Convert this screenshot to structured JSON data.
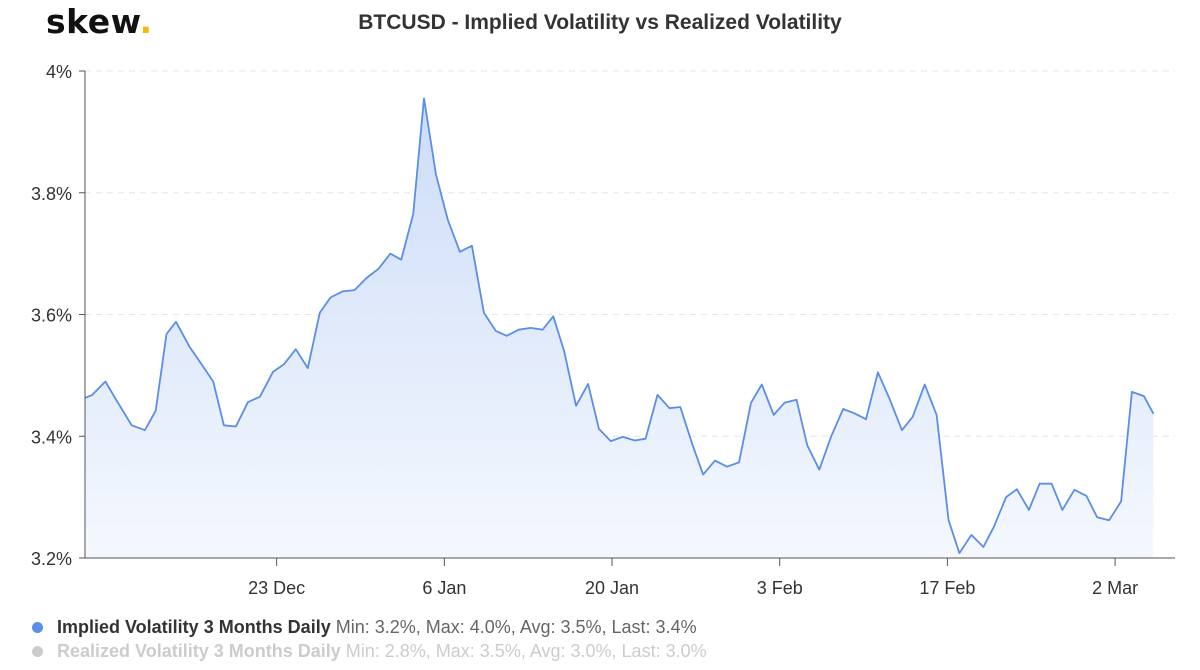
{
  "logo": {
    "text": "skew",
    "dot": "."
  },
  "colors": {
    "primary_line": "#5b8ee6",
    "area_fill_top": "#c9daf7",
    "area_fill_bottom": "#f3f7fe",
    "inactive": "#cccccc",
    "grid": "#e6e6e6",
    "axis": "#555555"
  },
  "legend": [
    {
      "name": "Implied Volatility 3 Months Daily",
      "stats": "Min: 3.2%, Max: 4.0%, Avg: 3.5%, Last: 3.4%",
      "active": true
    },
    {
      "name": "Realized Volatility 3 Months Daily",
      "stats": "Min: 2.8%, Max: 3.5%, Avg: 3.0%, Last: 3.0%",
      "active": false
    }
  ],
  "chart_data": {
    "type": "area",
    "title": "BTCUSD - Implied Volatility vs Realized Volatility",
    "y_ticks": [
      {
        "value": 3.2,
        "label": "3.2%"
      },
      {
        "value": 3.4,
        "label": "3.4%"
      },
      {
        "value": 3.6,
        "label": "3.6%"
      },
      {
        "value": 3.8,
        "label": "3.8%"
      },
      {
        "value": 4.0,
        "label": "4%"
      }
    ],
    "ylim": [
      3.2,
      4.0
    ],
    "x_ticks": [
      {
        "label": "23 Dec",
        "day": 16
      },
      {
        "label": "6 Jan",
        "day": 30
      },
      {
        "label": "20 Jan",
        "day": 44
      },
      {
        "label": "3 Feb",
        "day": 58
      },
      {
        "label": "17 Feb",
        "day": 72
      },
      {
        "label": "2 Mar",
        "day": 86
      }
    ],
    "xlim": [
      0,
      91
    ],
    "grid": true,
    "legend_position": "bottom-left",
    "series": [
      {
        "name": "Implied Volatility 3 Months Daily",
        "points": [
          [
            0,
            3.463
          ],
          [
            0.6,
            3.468
          ],
          [
            1.7,
            3.49
          ],
          [
            2.6,
            3.46
          ],
          [
            3.9,
            3.418
          ],
          [
            5,
            3.41
          ],
          [
            5.9,
            3.442
          ],
          [
            6.8,
            3.568
          ],
          [
            7.6,
            3.588
          ],
          [
            8.7,
            3.548
          ],
          [
            9.6,
            3.522
          ],
          [
            10.7,
            3.49
          ],
          [
            11.6,
            3.418
          ],
          [
            12.6,
            3.416
          ],
          [
            13.6,
            3.456
          ],
          [
            14.6,
            3.465
          ],
          [
            15.7,
            3.506
          ],
          [
            16.6,
            3.518
          ],
          [
            17.6,
            3.543
          ],
          [
            18.6,
            3.512
          ],
          [
            19.6,
            3.603
          ],
          [
            20.5,
            3.628
          ],
          [
            21.5,
            3.638
          ],
          [
            22.5,
            3.64
          ],
          [
            23.5,
            3.66
          ],
          [
            24.5,
            3.675
          ],
          [
            25.5,
            3.7
          ],
          [
            26.4,
            3.69
          ],
          [
            27.4,
            3.765
          ],
          [
            28.3,
            3.955
          ],
          [
            29.3,
            3.83
          ],
          [
            30.3,
            3.755
          ],
          [
            31.3,
            3.703
          ],
          [
            32.3,
            3.713
          ],
          [
            33.3,
            3.603
          ],
          [
            34.3,
            3.573
          ],
          [
            35.2,
            3.565
          ],
          [
            36.2,
            3.575
          ],
          [
            37.2,
            3.578
          ],
          [
            38.2,
            3.575
          ],
          [
            39.1,
            3.597
          ],
          [
            40,
            3.54
          ],
          [
            41,
            3.45
          ],
          [
            42,
            3.486
          ],
          [
            42.9,
            3.412
          ],
          [
            43.9,
            3.392
          ],
          [
            44.9,
            3.399
          ],
          [
            45.9,
            3.393
          ],
          [
            46.8,
            3.396
          ],
          [
            47.8,
            3.468
          ],
          [
            48.8,
            3.446
          ],
          [
            49.7,
            3.448
          ],
          [
            50.7,
            3.387
          ],
          [
            51.6,
            3.337
          ],
          [
            52.6,
            3.36
          ],
          [
            53.6,
            3.35
          ],
          [
            54.6,
            3.357
          ],
          [
            55.6,
            3.455
          ],
          [
            56.5,
            3.485
          ],
          [
            57.5,
            3.435
          ],
          [
            58.4,
            3.455
          ],
          [
            59.4,
            3.46
          ],
          [
            60.3,
            3.385
          ],
          [
            61.3,
            3.345
          ],
          [
            62.3,
            3.4
          ],
          [
            63.3,
            3.445
          ],
          [
            64.3,
            3.437
          ],
          [
            65.2,
            3.428
          ],
          [
            66.2,
            3.505
          ],
          [
            67.2,
            3.46
          ],
          [
            68.2,
            3.41
          ],
          [
            69.1,
            3.432
          ],
          [
            70.1,
            3.485
          ],
          [
            71.1,
            3.435
          ],
          [
            72.1,
            3.262
          ],
          [
            73,
            3.208
          ],
          [
            74,
            3.238
          ],
          [
            75,
            3.218
          ],
          [
            75.9,
            3.252
          ],
          [
            76.9,
            3.3
          ],
          [
            77.8,
            3.313
          ],
          [
            78.8,
            3.279
          ],
          [
            79.7,
            3.322
          ],
          [
            80.7,
            3.322
          ],
          [
            81.6,
            3.279
          ],
          [
            82.6,
            3.312
          ],
          [
            83.6,
            3.302
          ],
          [
            84.5,
            3.267
          ],
          [
            85.5,
            3.262
          ],
          [
            86.5,
            3.293
          ],
          [
            87.4,
            3.473
          ],
          [
            88.4,
            3.466
          ],
          [
            89.2,
            3.437
          ]
        ]
      }
    ]
  }
}
